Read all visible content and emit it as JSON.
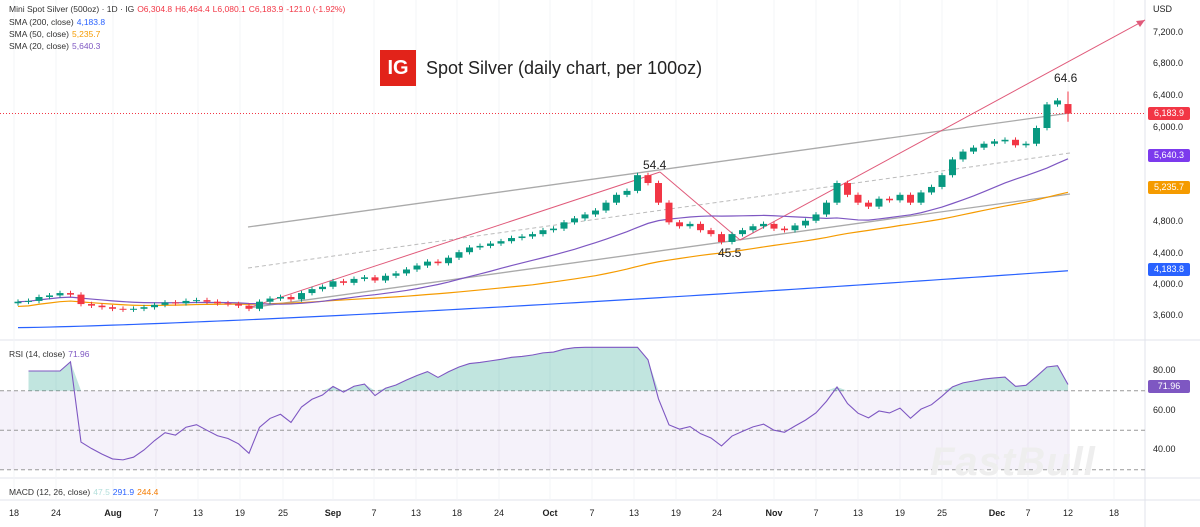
{
  "header": {
    "symbol": "Mini Spot Silver (500oz) · 1D · IG",
    "open": "O6,304.8",
    "high": "H6,464.4",
    "low": "L6,080.1",
    "close": "C6,183.9",
    "change": "-121.0 (-1.92%)"
  },
  "indicators": [
    {
      "label": "SMA (200, close)",
      "value": "4,183.8",
      "color": "#2962ff"
    },
    {
      "label": "SMA (50, close)",
      "value": "5,235.7",
      "color": "#f59b00"
    },
    {
      "label": "SMA (20, close)",
      "value": "5,640.3",
      "color": "#7e57c2"
    }
  ],
  "title": "Spot Silver (daily chart, per 100oz)",
  "logo": "IG",
  "annotations": {
    "peak1": "54.4",
    "trough": "45.5",
    "peak2": "64.6"
  },
  "price_axis": {
    "unit": "USD",
    "ticks": [
      "7,200.0",
      "6,800.0",
      "6,400.0",
      "6,000.0",
      "4,800.0",
      "4,400.0",
      "4,000.0",
      "3,600.0"
    ],
    "last_price": "6,183.9"
  },
  "rsi": {
    "label": "RSI (14, close)",
    "value": "71.96",
    "ticks": [
      "80.00",
      "60.00",
      "40.00"
    ]
  },
  "macd": {
    "label": "MACD (12, 26, close)",
    "v1": "47.5",
    "v2": "291.9",
    "v3": "244.4"
  },
  "x_axis": [
    "18",
    "24",
    "Aug",
    "7",
    "13",
    "19",
    "25",
    "Sep",
    "7",
    "13",
    "18",
    "24",
    "Oct",
    "7",
    "13",
    "19",
    "24",
    "Nov",
    "7",
    "13",
    "19",
    "25",
    "Dec",
    "7",
    "12",
    "18"
  ],
  "watermark": "FastBull",
  "chart_data": {
    "type": "candlestick",
    "ylim": [
      3400,
      7400
    ],
    "sma": {
      "sma200_last": 4183.8,
      "sma50_last": 5235.7,
      "sma20_last": 5640.3
    },
    "closes": [
      3790,
      3800,
      3850,
      3870,
      3900,
      3880,
      3760,
      3740,
      3720,
      3700,
      3690,
      3700,
      3720,
      3750,
      3780,
      3770,
      3800,
      3810,
      3790,
      3770,
      3760,
      3740,
      3700,
      3790,
      3830,
      3850,
      3820,
      3900,
      3950,
      3980,
      4050,
      4030,
      4080,
      4100,
      4060,
      4120,
      4150,
      4200,
      4250,
      4300,
      4280,
      4350,
      4420,
      4480,
      4500,
      4530,
      4560,
      4600,
      4620,
      4650,
      4700,
      4720,
      4800,
      4850,
      4900,
      4950,
      5050,
      5150,
      5200,
      5400,
      5300,
      5050,
      4800,
      4750,
      4780,
      4700,
      4650,
      4550,
      4650,
      4700,
      4750,
      4780,
      4720,
      4700,
      4760,
      4820,
      4900,
      5050,
      5300,
      5150,
      5050,
      5000,
      5100,
      5080,
      5150,
      5050,
      5180,
      5250,
      5400,
      5600,
      5700,
      5750,
      5800,
      5830,
      5850,
      5780,
      5800,
      6000,
      6300,
      6350,
      6183.9
    ],
    "last_ohlc": {
      "open": 6304.8,
      "high": 6464.4,
      "low": 6080.1,
      "close": 6183.9
    },
    "colors": {
      "up": "#089981",
      "down": "#f23645"
    }
  }
}
